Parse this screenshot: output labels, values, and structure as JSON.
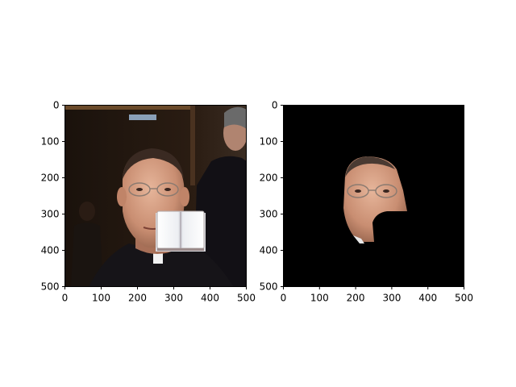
{
  "panels": [
    {
      "name": "original-photo",
      "x_ticks": [
        "0",
        "100",
        "200",
        "300",
        "400",
        "500"
      ],
      "y_ticks": [
        "0",
        "100",
        "200",
        "300",
        "400",
        "500"
      ],
      "xlim": [
        0,
        500
      ],
      "ylim": [
        500,
        0
      ]
    },
    {
      "name": "segmented-face",
      "x_ticks": [
        "0",
        "100",
        "200",
        "300",
        "400",
        "500"
      ],
      "y_ticks": [
        "0",
        "100",
        "200",
        "300",
        "400",
        "500"
      ],
      "xlim": [
        0,
        500
      ],
      "ylim": [
        500,
        0
      ]
    }
  ],
  "colors": {
    "background": "#ffffff",
    "mask_background": "#000000",
    "axis": "#000000",
    "skin": "#d9a58a",
    "book_page": "#f4f4f6",
    "robe": "#161418"
  },
  "icons": [
    "book-overlay-icon",
    "glasses-icon"
  ]
}
